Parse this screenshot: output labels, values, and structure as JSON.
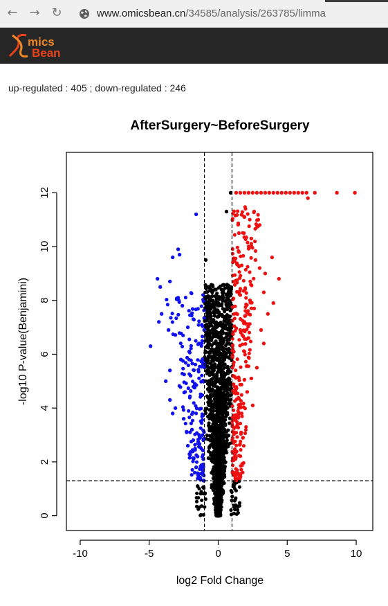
{
  "browser": {
    "url_host": "www.omicsbean.cn",
    "url_path": "/34585/analysis/263785/limma"
  },
  "app": {
    "logo_line1": "mics",
    "logo_line2": "Bean",
    "colors": {
      "header_bg": "#262626",
      "logo_red": "#e8421c",
      "logo_orange": "#f0882a"
    }
  },
  "summary": {
    "text": "up-regulated : 405 ; down-regulated : 246",
    "up_count": 405,
    "down_count": 246
  },
  "chart_data": {
    "type": "scatter",
    "title": "AfterSurgery~BeforeSurgery",
    "xlabel": "log2 Fold Change",
    "ylabel": "-log10 P-value(Benjamini)",
    "xlim": [
      -11,
      11.2
    ],
    "ylim": [
      -0.55,
      13.5
    ],
    "xticks": [
      -10,
      -5,
      0,
      5,
      10
    ],
    "yticks": [
      0,
      2,
      4,
      6,
      8,
      10,
      12
    ],
    "xtick_labels": [
      "-10",
      "-5",
      "0",
      "5",
      "10"
    ],
    "ytick_labels": [
      "0",
      "2",
      "4",
      "6",
      "8",
      "10",
      "12"
    ],
    "thresholds": {
      "fold_change": [
        -1,
        1
      ],
      "significance": 1.3
    },
    "colors": {
      "up": "#ee1111",
      "down": "#1111ee",
      "ns": "#000000"
    },
    "grid": false,
    "legend": "none",
    "series": [
      {
        "group": "up",
        "count": 405,
        "points": [
          [
            7.0,
            12
          ],
          [
            8.6,
            12
          ],
          [
            9.9,
            12
          ],
          [
            6.4,
            12
          ],
          [
            6.1,
            12
          ],
          [
            5.8,
            12
          ],
          [
            5.5,
            12
          ],
          [
            5.2,
            12
          ],
          [
            4.9,
            12
          ],
          [
            4.6,
            12
          ],
          [
            4.3,
            12
          ],
          [
            4.0,
            12
          ],
          [
            3.7,
            12
          ],
          [
            3.4,
            12
          ],
          [
            3.1,
            12
          ],
          [
            2.8,
            12
          ],
          [
            2.5,
            12
          ],
          [
            2.2,
            12
          ],
          [
            1.9,
            12
          ],
          [
            1.6,
            12
          ],
          [
            1.3,
            12
          ],
          [
            6.5,
            11.8
          ],
          [
            2.6,
            11.3
          ],
          [
            1.9,
            11.1
          ],
          [
            2.9,
            11.0
          ],
          [
            3.0,
            10.8
          ],
          [
            1.5,
            10.5
          ],
          [
            2.4,
            10.3
          ],
          [
            3.9,
            9.6
          ],
          [
            2.7,
            9.5
          ],
          [
            1.7,
            9.3
          ],
          [
            3.0,
            9.2
          ],
          [
            3.4,
            9.0
          ],
          [
            4.4,
            8.8
          ],
          [
            3.3,
            8.3
          ],
          [
            1.6,
            8.2
          ],
          [
            4.0,
            7.9
          ],
          [
            2.6,
            7.7
          ],
          [
            3.6,
            7.5
          ],
          [
            3.1,
            6.9
          ],
          [
            2.2,
            6.6
          ],
          [
            3.3,
            6.4
          ],
          [
            1.9,
            6.1
          ],
          [
            2.8,
            5.5
          ],
          [
            2.4,
            5.1
          ],
          [
            2.1,
            4.6
          ],
          [
            2.5,
            4.1
          ],
          [
            1.7,
            3.8
          ],
          [
            1.3,
            3.3
          ],
          [
            1.8,
            2.9
          ],
          [
            1.2,
            2.3
          ],
          [
            1.6,
            6.9
          ],
          [
            1.9,
            7.2
          ],
          [
            2.3,
            8.0
          ],
          [
            1.5,
            9.8
          ]
        ]
      },
      {
        "group": "down",
        "count": 246,
        "points": [
          [
            -1.6,
            11.2
          ],
          [
            -2.9,
            9.9
          ],
          [
            -2.8,
            9.7
          ],
          [
            -3.3,
            9.6
          ],
          [
            -4.4,
            8.8
          ],
          [
            -3.5,
            8.7
          ],
          [
            -4.2,
            8.5
          ],
          [
            -2.9,
            8.1
          ],
          [
            -2.6,
            7.8
          ],
          [
            -4.1,
            7.5
          ],
          [
            -4.3,
            7.2
          ],
          [
            -1.8,
            7.3
          ],
          [
            -2.2,
            7.0
          ],
          [
            -3.6,
            6.9
          ],
          [
            -4.9,
            6.3
          ],
          [
            -2.1,
            6.1
          ],
          [
            -2.7,
            5.8
          ],
          [
            -3.5,
            5.4
          ],
          [
            -3.8,
            5.0
          ],
          [
            -2.4,
            4.6
          ],
          [
            -3.5,
            4.3
          ],
          [
            -3.1,
            4.0
          ],
          [
            -2.5,
            3.6
          ],
          [
            -1.9,
            3.2
          ],
          [
            -2.2,
            2.6
          ],
          [
            -1.5,
            2.2
          ],
          [
            -1.6,
            1.8
          ],
          [
            -1.3,
            1.4
          ],
          [
            -3.3,
            3.8
          ],
          [
            -2.0,
            5.2
          ],
          [
            -1.4,
            6.4
          ],
          [
            -1.7,
            4.9
          ]
        ]
      },
      {
        "group": "ns",
        "count": null,
        "points": [
          [
            0.9,
            12
          ],
          [
            -0.9,
            9.5
          ],
          [
            0.6,
            11.3
          ],
          [
            -0.3,
            7.0
          ],
          [
            0.1,
            4.0
          ],
          [
            -0.2,
            2.0
          ],
          [
            0.0,
            0.0
          ],
          [
            0.4,
            3.5
          ],
          [
            -0.5,
            5.0
          ],
          [
            0.7,
            8.5
          ],
          [
            -0.7,
            6.5
          ]
        ]
      }
    ]
  }
}
